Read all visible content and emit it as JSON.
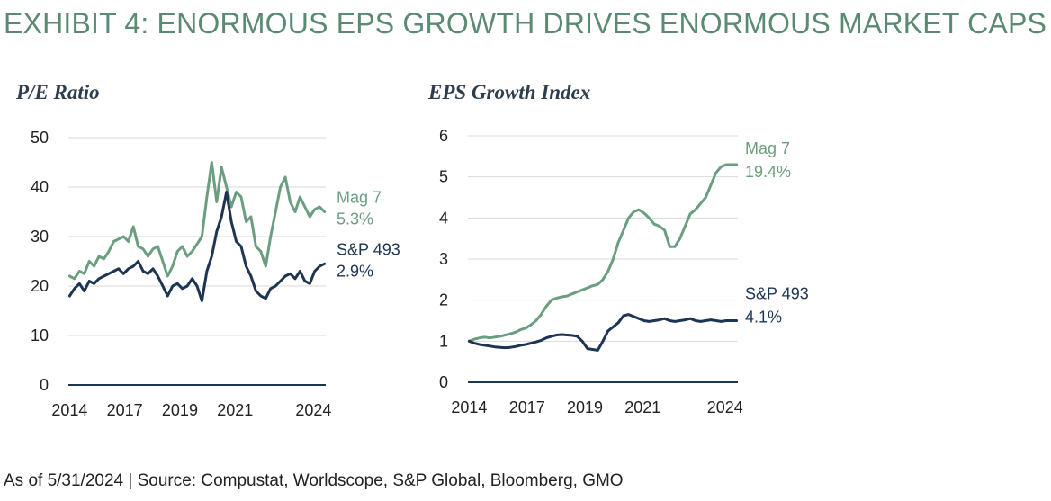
{
  "page": {
    "title": "EXHIBIT 4: ENORMOUS EPS GROWTH DRIVES ENORMOUS MARKET CAPS",
    "footnote": "As of 5/31/2024 | Source: Compustat, Worldscope, S&P Global, Bloomberg, GMO"
  },
  "colors": {
    "title": "#5b8a73",
    "mag7": "#6b9e80",
    "sp493": "#1d3553",
    "axis": "#1d3553",
    "grid": "#d9d9d9"
  },
  "chart_data": [
    {
      "id": "pe",
      "type": "line",
      "title": "P/E Ratio",
      "xlabel": "",
      "ylabel": "",
      "xlim": [
        2013.95,
        2024.45
      ],
      "ylim": [
        0,
        50
      ],
      "yticks": [
        0,
        10,
        20,
        30,
        40,
        50
      ],
      "xticks": [
        "2014",
        "2017",
        "2019",
        "2021",
        "2024"
      ],
      "xtick_values": [
        2014,
        2016.25,
        2018.5,
        2020.75,
        2023.95
      ],
      "grid": true,
      "legend": "inline labels at right end of each line",
      "series": [
        {
          "name": "Mag 7",
          "end_label": "5.3%",
          "color": "#6b9e80",
          "x": [
            2014.0,
            2014.2,
            2014.4,
            2014.6,
            2014.8,
            2015.0,
            2015.2,
            2015.4,
            2015.6,
            2015.8,
            2016.0,
            2016.2,
            2016.4,
            2016.6,
            2016.8,
            2017.0,
            2017.2,
            2017.4,
            2017.6,
            2017.8,
            2018.0,
            2018.2,
            2018.4,
            2018.6,
            2018.8,
            2019.0,
            2019.2,
            2019.4,
            2019.6,
            2019.8,
            2020.0,
            2020.2,
            2020.4,
            2020.6,
            2020.8,
            2021.0,
            2021.2,
            2021.4,
            2021.6,
            2021.8,
            2022.0,
            2022.2,
            2022.4,
            2022.6,
            2022.8,
            2023.0,
            2023.2,
            2023.4,
            2023.6,
            2023.8,
            2024.0,
            2024.2,
            2024.4
          ],
          "y": [
            22,
            21.5,
            23,
            22.5,
            25,
            24,
            26,
            25.5,
            27,
            29,
            29.5,
            30,
            29,
            32,
            28,
            27.5,
            26,
            27.5,
            28,
            25,
            22,
            24,
            27,
            28,
            26,
            27,
            28.5,
            30,
            38,
            45,
            37,
            44,
            40,
            36,
            39,
            38,
            33,
            34,
            28,
            27,
            24,
            30,
            35,
            40,
            42,
            37,
            35,
            38,
            36,
            34,
            35.5,
            36,
            35
          ]
        },
        {
          "name": "S&P 493",
          "end_label": "2.9%",
          "color": "#1d3553",
          "x": [
            2014.0,
            2014.2,
            2014.4,
            2014.6,
            2014.8,
            2015.0,
            2015.2,
            2015.4,
            2015.6,
            2015.8,
            2016.0,
            2016.2,
            2016.4,
            2016.6,
            2016.8,
            2017.0,
            2017.2,
            2017.4,
            2017.6,
            2017.8,
            2018.0,
            2018.2,
            2018.4,
            2018.6,
            2018.8,
            2019.0,
            2019.2,
            2019.4,
            2019.6,
            2019.8,
            2020.0,
            2020.2,
            2020.4,
            2020.6,
            2020.8,
            2021.0,
            2021.2,
            2021.4,
            2021.6,
            2021.8,
            2022.0,
            2022.2,
            2022.4,
            2022.6,
            2022.8,
            2023.0,
            2023.2,
            2023.4,
            2023.6,
            2023.8,
            2024.0,
            2024.2,
            2024.4
          ],
          "y": [
            18,
            19.5,
            20.5,
            19,
            21,
            20.5,
            21.5,
            22,
            22.5,
            23,
            23.5,
            22.5,
            23.5,
            24,
            25,
            23,
            22.5,
            23.5,
            22,
            20,
            18,
            20,
            20.5,
            19.5,
            20,
            21.5,
            20,
            17,
            23,
            26,
            31,
            34,
            39,
            33,
            29,
            28,
            24,
            22,
            19,
            18,
            17.5,
            19.5,
            20,
            21,
            22,
            22.5,
            21.5,
            23,
            21,
            20.5,
            23,
            24,
            24.5
          ]
        }
      ]
    },
    {
      "id": "eps",
      "type": "line",
      "title": "EPS Growth Index",
      "xlabel": "",
      "ylabel": "",
      "xlim": [
        2013.95,
        2024.45
      ],
      "ylim": [
        0,
        6
      ],
      "yticks": [
        0,
        1,
        2,
        3,
        4,
        5,
        6
      ],
      "xticks": [
        "2014",
        "2017",
        "2019",
        "2021",
        "2024"
      ],
      "xtick_values": [
        2014,
        2016.25,
        2018.5,
        2020.75,
        2023.95
      ],
      "grid": true,
      "legend": "inline labels at right end of each line",
      "series": [
        {
          "name": "Mag 7",
          "end_label": "19.4%",
          "color": "#6b9e80",
          "x": [
            2014.0,
            2014.2,
            2014.4,
            2014.6,
            2014.8,
            2015.0,
            2015.2,
            2015.4,
            2015.6,
            2015.8,
            2016.0,
            2016.2,
            2016.4,
            2016.6,
            2016.8,
            2017.0,
            2017.2,
            2017.4,
            2017.6,
            2017.8,
            2018.0,
            2018.2,
            2018.4,
            2018.6,
            2018.8,
            2019.0,
            2019.2,
            2019.4,
            2019.6,
            2019.8,
            2020.0,
            2020.2,
            2020.4,
            2020.6,
            2020.8,
            2021.0,
            2021.2,
            2021.4,
            2021.6,
            2021.8,
            2022.0,
            2022.2,
            2022.4,
            2022.6,
            2022.8,
            2023.0,
            2023.2,
            2023.4,
            2023.6,
            2023.8,
            2024.0,
            2024.2,
            2024.4
          ],
          "y": [
            1.0,
            1.05,
            1.08,
            1.1,
            1.08,
            1.1,
            1.12,
            1.15,
            1.18,
            1.22,
            1.28,
            1.32,
            1.4,
            1.5,
            1.65,
            1.85,
            2.0,
            2.05,
            2.08,
            2.1,
            2.15,
            2.2,
            2.25,
            2.3,
            2.35,
            2.38,
            2.5,
            2.7,
            3.0,
            3.4,
            3.7,
            4.0,
            4.15,
            4.2,
            4.12,
            4.0,
            3.85,
            3.8,
            3.7,
            3.3,
            3.3,
            3.5,
            3.8,
            4.1,
            4.2,
            4.35,
            4.5,
            4.8,
            5.1,
            5.25,
            5.3,
            5.3,
            5.3
          ]
        },
        {
          "name": "S&P 493",
          "end_label": "4.1%",
          "color": "#1d3553",
          "x": [
            2014.0,
            2014.2,
            2014.4,
            2014.6,
            2014.8,
            2015.0,
            2015.2,
            2015.4,
            2015.6,
            2015.8,
            2016.0,
            2016.2,
            2016.4,
            2016.6,
            2016.8,
            2017.0,
            2017.2,
            2017.4,
            2017.6,
            2017.8,
            2018.0,
            2018.2,
            2018.4,
            2018.6,
            2018.8,
            2019.0,
            2019.2,
            2019.4,
            2019.6,
            2019.8,
            2020.0,
            2020.2,
            2020.4,
            2020.6,
            2020.8,
            2021.0,
            2021.2,
            2021.4,
            2021.6,
            2021.8,
            2022.0,
            2022.2,
            2022.4,
            2022.6,
            2022.8,
            2023.0,
            2023.2,
            2023.4,
            2023.6,
            2023.8,
            2024.0,
            2024.2,
            2024.4
          ],
          "y": [
            1.0,
            0.95,
            0.92,
            0.9,
            0.88,
            0.86,
            0.85,
            0.84,
            0.85,
            0.87,
            0.9,
            0.92,
            0.95,
            0.98,
            1.02,
            1.08,
            1.12,
            1.15,
            1.16,
            1.15,
            1.14,
            1.12,
            1.0,
            0.82,
            0.8,
            0.78,
            1.0,
            1.25,
            1.35,
            1.45,
            1.62,
            1.65,
            1.6,
            1.55,
            1.5,
            1.48,
            1.5,
            1.52,
            1.55,
            1.5,
            1.48,
            1.5,
            1.52,
            1.55,
            1.5,
            1.48,
            1.5,
            1.52,
            1.5,
            1.48,
            1.5,
            1.5,
            1.5
          ]
        }
      ]
    }
  ]
}
